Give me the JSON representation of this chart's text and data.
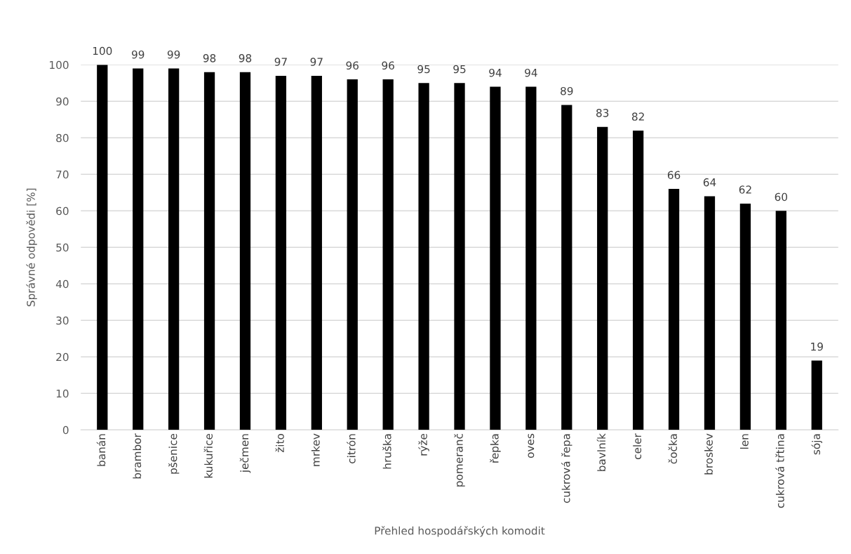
{
  "chart_data": {
    "type": "bar",
    "xlabel": "Přehled hospodářských komodit",
    "ylabel": "Správné odpovědi [%]",
    "categories": [
      "banán",
      "brambor",
      "pšenice",
      "kukuřice",
      "ječmen",
      "žito",
      "mrkev",
      "citrón",
      "hruška",
      "rýže",
      "pomeranč",
      "řepka",
      "oves",
      "cukrová řepa",
      "bavlník",
      "celer",
      "čočka",
      "broskev",
      "len",
      "cukrová třtina",
      "sója"
    ],
    "values": [
      100,
      99,
      99,
      98,
      98,
      97,
      97,
      96,
      96,
      95,
      95,
      94,
      94,
      89,
      83,
      82,
      66,
      64,
      62,
      60,
      19
    ],
    "color": "#000000",
    "data_labels": true,
    "ylim": [
      0,
      100
    ],
    "yticks": [
      0,
      10,
      20,
      30,
      40,
      50,
      60,
      70,
      80,
      90,
      100
    ],
    "grid": "y",
    "legend": false
  }
}
